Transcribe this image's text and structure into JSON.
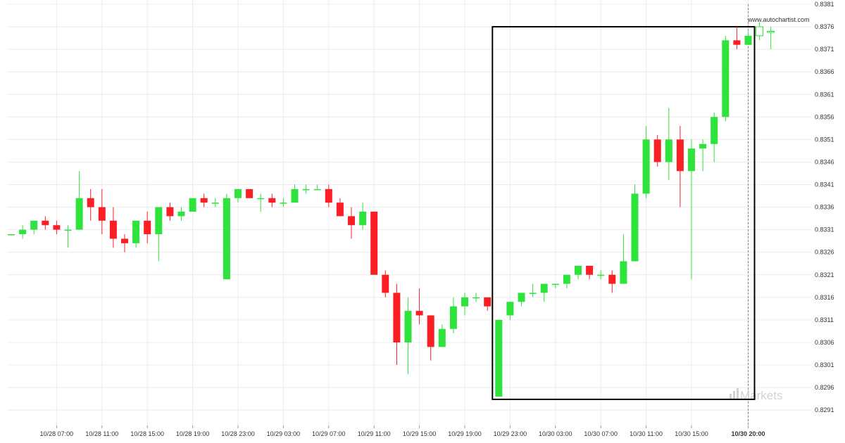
{
  "watermark": {
    "url": "www.autochartist.com",
    "brand": "Markets"
  },
  "colors": {
    "up": "#2ee33b",
    "down": "#fb1e25",
    "grid": "#ececec",
    "box": "#000000",
    "brand": "#cfd3d6"
  },
  "chart_data": {
    "type": "candlestick",
    "y_axis": {
      "position": "right",
      "ylim": [
        0.8289,
        0.8381
      ],
      "ticks": [
        "0.8291",
        "0.8296",
        "0.8301",
        "0.8306",
        "0.8311",
        "0.8316",
        "0.8321",
        "0.8326",
        "0.8331",
        "0.8336",
        "0.8341",
        "0.8346",
        "0.8351",
        "0.8356",
        "0.8361",
        "0.8366",
        "0.8371",
        "0.8376",
        "0.8381"
      ]
    },
    "x_axis": {
      "ticks": [
        {
          "label": "10/28 07:00",
          "index": 4
        },
        {
          "label": "10/28 11:00",
          "index": 8
        },
        {
          "label": "10/28 15:00",
          "index": 12
        },
        {
          "label": "10/28 19:00",
          "index": 16
        },
        {
          "label": "10/28 23:00",
          "index": 20
        },
        {
          "label": "10/29 03:00",
          "index": 24
        },
        {
          "label": "10/29 07:00",
          "index": 28
        },
        {
          "label": "10/29 11:00",
          "index": 32
        },
        {
          "label": "10/29 15:00",
          "index": 36
        },
        {
          "label": "10/29 19:00",
          "index": 40
        },
        {
          "label": "10/29 23:00",
          "index": 44
        },
        {
          "label": "10/30 03:00",
          "index": 48
        },
        {
          "label": "10/30 07:00",
          "index": 52
        },
        {
          "label": "10/30 11:00",
          "index": 56
        },
        {
          "label": "10/30 15:00",
          "index": 60
        },
        {
          "label": "10/30 20:00",
          "index": 65,
          "bold": true
        }
      ]
    },
    "candles": [
      {
        "o": 0.833,
        "h": 0.833,
        "l": 0.833,
        "c": 0.833
      },
      {
        "o": 0.833,
        "h": 0.8332,
        "l": 0.8329,
        "c": 0.8331
      },
      {
        "o": 0.8331,
        "h": 0.8333,
        "l": 0.833,
        "c": 0.8333
      },
      {
        "o": 0.8333,
        "h": 0.8334,
        "l": 0.8331,
        "c": 0.8332
      },
      {
        "o": 0.8332,
        "h": 0.8333,
        "l": 0.833,
        "c": 0.8331
      },
      {
        "o": 0.8331,
        "h": 0.8332,
        "l": 0.8327,
        "c": 0.8331
      },
      {
        "o": 0.8331,
        "h": 0.8344,
        "l": 0.8331,
        "c": 0.8338
      },
      {
        "o": 0.8338,
        "h": 0.834,
        "l": 0.8333,
        "c": 0.8336
      },
      {
        "o": 0.8336,
        "h": 0.834,
        "l": 0.833,
        "c": 0.8333
      },
      {
        "o": 0.8333,
        "h": 0.8336,
        "l": 0.8327,
        "c": 0.8329
      },
      {
        "o": 0.8329,
        "h": 0.833,
        "l": 0.8326,
        "c": 0.8328
      },
      {
        "o": 0.8328,
        "h": 0.8333,
        "l": 0.8327,
        "c": 0.8333
      },
      {
        "o": 0.8333,
        "h": 0.8335,
        "l": 0.8328,
        "c": 0.833
      },
      {
        "o": 0.833,
        "h": 0.8336,
        "l": 0.8324,
        "c": 0.8336
      },
      {
        "o": 0.8336,
        "h": 0.8337,
        "l": 0.8333,
        "c": 0.8334
      },
      {
        "o": 0.8334,
        "h": 0.8336,
        "l": 0.8333,
        "c": 0.8335
      },
      {
        "o": 0.8335,
        "h": 0.8338,
        "l": 0.8335,
        "c": 0.8338
      },
      {
        "o": 0.8338,
        "h": 0.8339,
        "l": 0.8336,
        "c": 0.8337
      },
      {
        "o": 0.8337,
        "h": 0.8338,
        "l": 0.8336,
        "c": 0.8337
      },
      {
        "o": 0.832,
        "h": 0.8339,
        "l": 0.832,
        "c": 0.8338
      },
      {
        "o": 0.8338,
        "h": 0.834,
        "l": 0.8337,
        "c": 0.834
      },
      {
        "o": 0.834,
        "h": 0.834,
        "l": 0.8338,
        "c": 0.8338
      },
      {
        "o": 0.8338,
        "h": 0.8339,
        "l": 0.8335,
        "c": 0.8338
      },
      {
        "o": 0.8338,
        "h": 0.8339,
        "l": 0.8336,
        "c": 0.8337
      },
      {
        "o": 0.8337,
        "h": 0.8338,
        "l": 0.8336,
        "c": 0.8337
      },
      {
        "o": 0.8337,
        "h": 0.8341,
        "l": 0.8337,
        "c": 0.834
      },
      {
        "o": 0.834,
        "h": 0.8341,
        "l": 0.8339,
        "c": 0.834
      },
      {
        "o": 0.834,
        "h": 0.8341,
        "l": 0.834,
        "c": 0.834
      },
      {
        "o": 0.834,
        "h": 0.8341,
        "l": 0.8336,
        "c": 0.8337
      },
      {
        "o": 0.8337,
        "h": 0.8338,
        "l": 0.8334,
        "c": 0.8334
      },
      {
        "o": 0.8334,
        "h": 0.8336,
        "l": 0.8329,
        "c": 0.8332
      },
      {
        "o": 0.8332,
        "h": 0.8337,
        "l": 0.8331,
        "c": 0.8335
      },
      {
        "o": 0.8335,
        "h": 0.8335,
        "l": 0.8321,
        "c": 0.8321
      },
      {
        "o": 0.8321,
        "h": 0.8322,
        "l": 0.8316,
        "c": 0.8317
      },
      {
        "o": 0.8317,
        "h": 0.8319,
        "l": 0.8301,
        "c": 0.8306
      },
      {
        "o": 0.8306,
        "h": 0.8316,
        "l": 0.8299,
        "c": 0.8313
      },
      {
        "o": 0.8313,
        "h": 0.8318,
        "l": 0.831,
        "c": 0.8312
      },
      {
        "o": 0.8312,
        "h": 0.8312,
        "l": 0.8302,
        "c": 0.8305
      },
      {
        "o": 0.8305,
        "h": 0.831,
        "l": 0.8305,
        "c": 0.8309
      },
      {
        "o": 0.8309,
        "h": 0.8316,
        "l": 0.8308,
        "c": 0.8314
      },
      {
        "o": 0.8314,
        "h": 0.8317,
        "l": 0.8312,
        "c": 0.8316
      },
      {
        "o": 0.8316,
        "h": 0.8317,
        "l": 0.8315,
        "c": 0.8316
      },
      {
        "o": 0.8316,
        "h": 0.8316,
        "l": 0.8313,
        "c": 0.8314
      },
      {
        "o": 0.8294,
        "h": 0.8311,
        "l": 0.8294,
        "c": 0.8311
      },
      {
        "o": 0.8312,
        "h": 0.8315,
        "l": 0.8311,
        "c": 0.8315
      },
      {
        "o": 0.8315,
        "h": 0.8317,
        "l": 0.8314,
        "c": 0.8317
      },
      {
        "o": 0.8317,
        "h": 0.8319,
        "l": 0.8316,
        "c": 0.8317
      },
      {
        "o": 0.8317,
        "h": 0.8319,
        "l": 0.8315,
        "c": 0.8319
      },
      {
        "o": 0.8319,
        "h": 0.8319,
        "l": 0.8318,
        "c": 0.8319
      },
      {
        "o": 0.8319,
        "h": 0.8321,
        "l": 0.8318,
        "c": 0.8321
      },
      {
        "o": 0.8321,
        "h": 0.8323,
        "l": 0.832,
        "c": 0.8323
      },
      {
        "o": 0.8323,
        "h": 0.8323,
        "l": 0.832,
        "c": 0.8321
      },
      {
        "o": 0.8321,
        "h": 0.8322,
        "l": 0.832,
        "c": 0.8321
      },
      {
        "o": 0.8321,
        "h": 0.8322,
        "l": 0.8317,
        "c": 0.8319
      },
      {
        "o": 0.8319,
        "h": 0.833,
        "l": 0.8319,
        "c": 0.8324
      },
      {
        "o": 0.8324,
        "h": 0.8341,
        "l": 0.8324,
        "c": 0.8339
      },
      {
        "o": 0.8339,
        "h": 0.8354,
        "l": 0.8338,
        "c": 0.8351
      },
      {
        "o": 0.8351,
        "h": 0.8352,
        "l": 0.8345,
        "c": 0.8346
      },
      {
        "o": 0.8346,
        "h": 0.8358,
        "l": 0.8342,
        "c": 0.8351
      },
      {
        "o": 0.8351,
        "h": 0.8354,
        "l": 0.8336,
        "c": 0.8344
      },
      {
        "o": 0.8344,
        "h": 0.8351,
        "l": 0.832,
        "c": 0.8349
      },
      {
        "o": 0.8349,
        "h": 0.8351,
        "l": 0.8344,
        "c": 0.835
      },
      {
        "o": 0.835,
        "h": 0.8357,
        "l": 0.8346,
        "c": 0.8356
      },
      {
        "o": 0.8356,
        "h": 0.8374,
        "l": 0.8355,
        "c": 0.8373
      },
      {
        "o": 0.8373,
        "h": 0.8376,
        "l": 0.8371,
        "c": 0.8372
      },
      {
        "o": 0.8372,
        "h": 0.8375,
        "l": 0.8372,
        "c": 0.8374
      },
      {
        "o": 0.8374,
        "h": 0.8377,
        "l": 0.8373,
        "c": 0.8376,
        "hollow": true
      },
      {
        "o": 0.8375,
        "h": 0.8376,
        "l": 0.8371,
        "c": 0.8375,
        "hollow": true
      }
    ],
    "box": {
      "from_index": 43,
      "to_index": 65,
      "y_top": 0.8376,
      "y_bottom": 0.8294
    },
    "current_time_index": 65,
    "grid": true,
    "legend": "none"
  }
}
